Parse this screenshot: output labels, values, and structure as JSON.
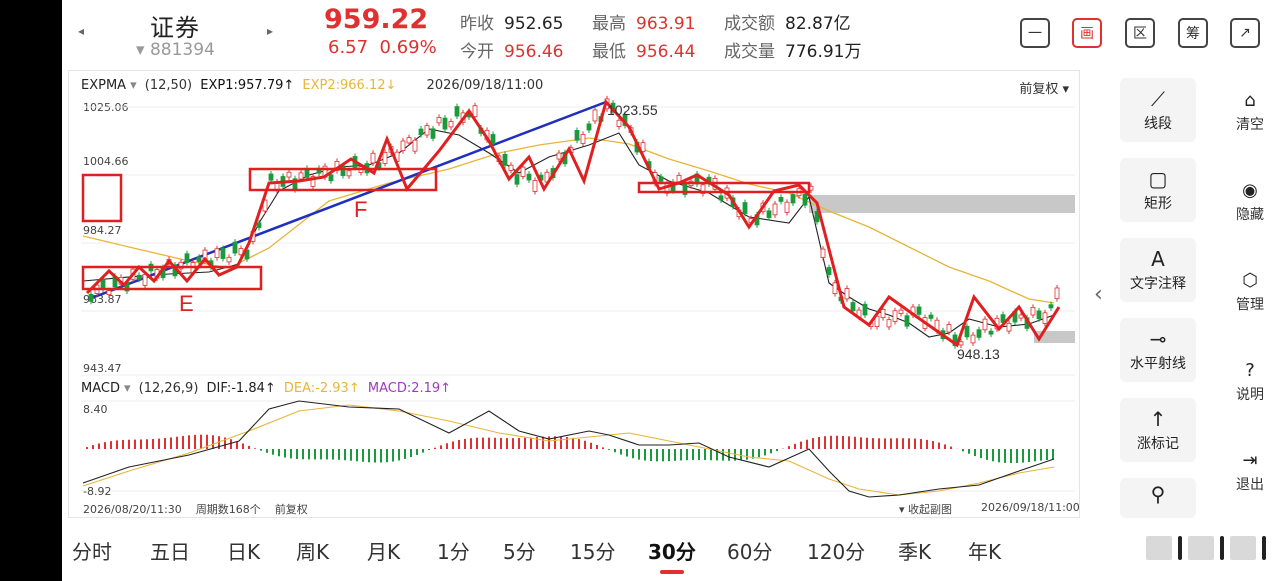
{
  "header": {
    "name": "证券",
    "code": "881394",
    "price": "959.22",
    "change": "6.57",
    "change_pct": "0.69%",
    "prev_close_label": "昨收",
    "prev_close": "952.65",
    "open_label": "今开",
    "open": "956.46",
    "high_label": "最高",
    "high": "963.91",
    "low_label": "最低",
    "low": "956.44",
    "amount_label": "成交额",
    "amount": "82.87亿",
    "volume_label": "成交量",
    "volume": "776.91万",
    "tools": [
      "一",
      "画",
      "区",
      "筹",
      "↗"
    ]
  },
  "chart": {
    "indicator": "EXPMA",
    "params": "(12,50)",
    "exp1": "EXP1:957.79↑",
    "exp2": "EXP2:966.12↓",
    "datetime": "2026/09/18/11:00",
    "adjust": "前复权",
    "y_labels": [
      "1025.06",
      "1004.66",
      "984.27",
      "963.87",
      "943.47"
    ],
    "high_label": "1023.55",
    "low_label": "948.13",
    "annotations": [
      "E",
      "F"
    ],
    "macd": "MACD",
    "macd_params": "(12,26,9)",
    "dif": "DIF:-1.84↑",
    "dea": "DEA:-2.93↑",
    "macd_val": "MACD:2.19↑",
    "macd_top": "8.40",
    "macd_bottom": "-8.92",
    "start_time": "2026/08/20/11:30",
    "period_count": "周期数168个",
    "adjust_bottom": "前复权",
    "collapse_sub": "收起副图",
    "end_time": "2026/09/18/11:00"
  },
  "panel": {
    "draw_tools": [
      {
        "icon": "⟋",
        "label": "线段"
      },
      {
        "icon": "▢",
        "label": "矩形"
      },
      {
        "icon": "A",
        "label": "文字注释"
      },
      {
        "icon": "⊸",
        "label": "水平射线"
      },
      {
        "icon": "↑",
        "label": "涨标记"
      },
      {
        "icon": "⚲",
        "label": ""
      }
    ],
    "side": [
      {
        "icon": "⌂",
        "label": "清空"
      },
      {
        "icon": "◉",
        "label": "隐藏"
      },
      {
        "icon": "⬡",
        "label": "管理"
      },
      {
        "icon": "?",
        "label": "说明"
      },
      {
        "icon": "⇥",
        "label": "退出"
      }
    ]
  },
  "tabs": [
    "分时",
    "五日",
    "日K",
    "周K",
    "月K",
    "1分",
    "5分",
    "15分",
    "30分",
    "60分",
    "120分",
    "季K",
    "年K"
  ],
  "active_tab": "30分",
  "colors": {
    "up": "#e03030",
    "down": "#1a9a3a",
    "exp1": "#111111",
    "exp2": "#e8b53a",
    "trend": "#1f2fbf"
  }
}
